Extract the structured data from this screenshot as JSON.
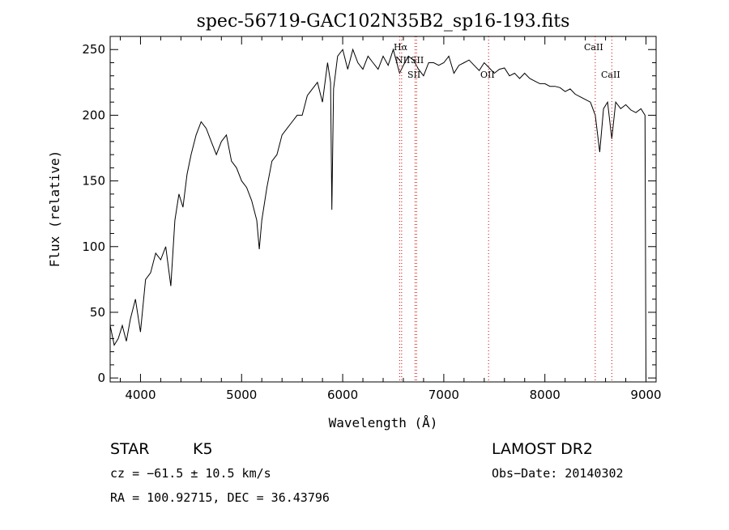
{
  "chart_data": {
    "type": "line",
    "title": "spec-56719-GAC102N35B2_sp16-193.fits",
    "xlabel": "Wavelength (Å)",
    "ylabel": "Flux (relative)",
    "xlim": [
      3700,
      9100
    ],
    "ylim": [
      -3,
      260
    ],
    "x_ticks": [
      4000,
      5000,
      6000,
      7000,
      8000,
      9000
    ],
    "x_tick_labels": [
      "4000",
      "5000",
      "6000",
      "7000",
      "8000",
      "9000"
    ],
    "y_ticks": [
      0,
      50,
      100,
      150,
      200,
      250
    ],
    "y_tick_labels": [
      "0",
      "50",
      "100",
      "150",
      "200",
      "250"
    ],
    "grid": false,
    "series": [
      {
        "x": [
          3700,
          3740,
          3780,
          3820,
          3860,
          3900,
          3950,
          4000,
          4050,
          4100,
          4150,
          4200,
          4250,
          4300,
          4340,
          4380,
          4420,
          4460,
          4500,
          4550,
          4600,
          4650,
          4700,
          4750,
          4800,
          4850,
          4900,
          4950,
          5000,
          5050,
          5100,
          5150,
          5175,
          5200,
          5250,
          5300,
          5350,
          5400,
          5450,
          5500,
          5550,
          5600,
          5650,
          5700,
          5750,
          5800,
          5850,
          5880,
          5893,
          5910,
          5950,
          6000,
          6050,
          6100,
          6150,
          6200,
          6250,
          6300,
          6350,
          6400,
          6450,
          6500,
          6563,
          6600,
          6650,
          6700,
          6750,
          6800,
          6850,
          6900,
          6950,
          7000,
          7050,
          7100,
          7150,
          7200,
          7250,
          7300,
          7350,
          7400,
          7450,
          7500,
          7550,
          7600,
          7650,
          7700,
          7750,
          7800,
          7850,
          7900,
          7950,
          8000,
          8050,
          8100,
          8150,
          8200,
          8250,
          8300,
          8350,
          8400,
          8450,
          8498,
          8542,
          8580,
          8620,
          8662,
          8700,
          8750,
          8800,
          8850,
          8900,
          8950,
          8990,
          9000
        ],
        "values": [
          40,
          25,
          30,
          40,
          28,
          45,
          60,
          35,
          75,
          80,
          95,
          90,
          100,
          70,
          120,
          140,
          130,
          155,
          170,
          185,
          195,
          190,
          180,
          170,
          180,
          185,
          165,
          160,
          150,
          145,
          135,
          120,
          98,
          120,
          145,
          165,
          170,
          185,
          190,
          195,
          200,
          200,
          215,
          220,
          225,
          210,
          240,
          225,
          128,
          220,
          245,
          250,
          235,
          250,
          240,
          235,
          245,
          240,
          235,
          245,
          238,
          250,
          232,
          238,
          245,
          242,
          235,
          230,
          240,
          240,
          238,
          240,
          245,
          232,
          238,
          240,
          242,
          238,
          234,
          240,
          236,
          232,
          235,
          236,
          230,
          232,
          228,
          232,
          228,
          226,
          224,
          224,
          222,
          222,
          221,
          218,
          220,
          216,
          214,
          212,
          210,
          200,
          172,
          205,
          210,
          182,
          210,
          205,
          208,
          204,
          202,
          205,
          200,
          0
        ]
      }
    ],
    "lines": [
      {
        "wavelength": 6563,
        "label": "Hα"
      },
      {
        "wavelength": 6583,
        "label": "NII"
      },
      {
        "wavelength": 6716,
        "label": "SII"
      },
      {
        "wavelength": 6731,
        "label": "SII"
      },
      {
        "wavelength": 7443,
        "label": "OII"
      },
      {
        "wavelength": 8498,
        "label": "CaII"
      },
      {
        "wavelength": 8662,
        "label": "CaII"
      }
    ]
  },
  "line_labels": {
    "halpha": "Hα",
    "nii": "NII",
    "sii": "SII",
    "oii": "OII",
    "caii_a": "CaII",
    "caii_b": "CaII"
  },
  "info": {
    "object_class": "STAR",
    "subclass": "K5",
    "survey": "LAMOST DR2",
    "cz": "cz = −61.5 ± 10.5 km/s",
    "obs_date": "Obs−Date: 20140302",
    "coords": "RA = 100.92715, DEC =  36.43796"
  },
  "colors": {
    "spectrum": "#000000",
    "line_markers": "#cc0000"
  }
}
